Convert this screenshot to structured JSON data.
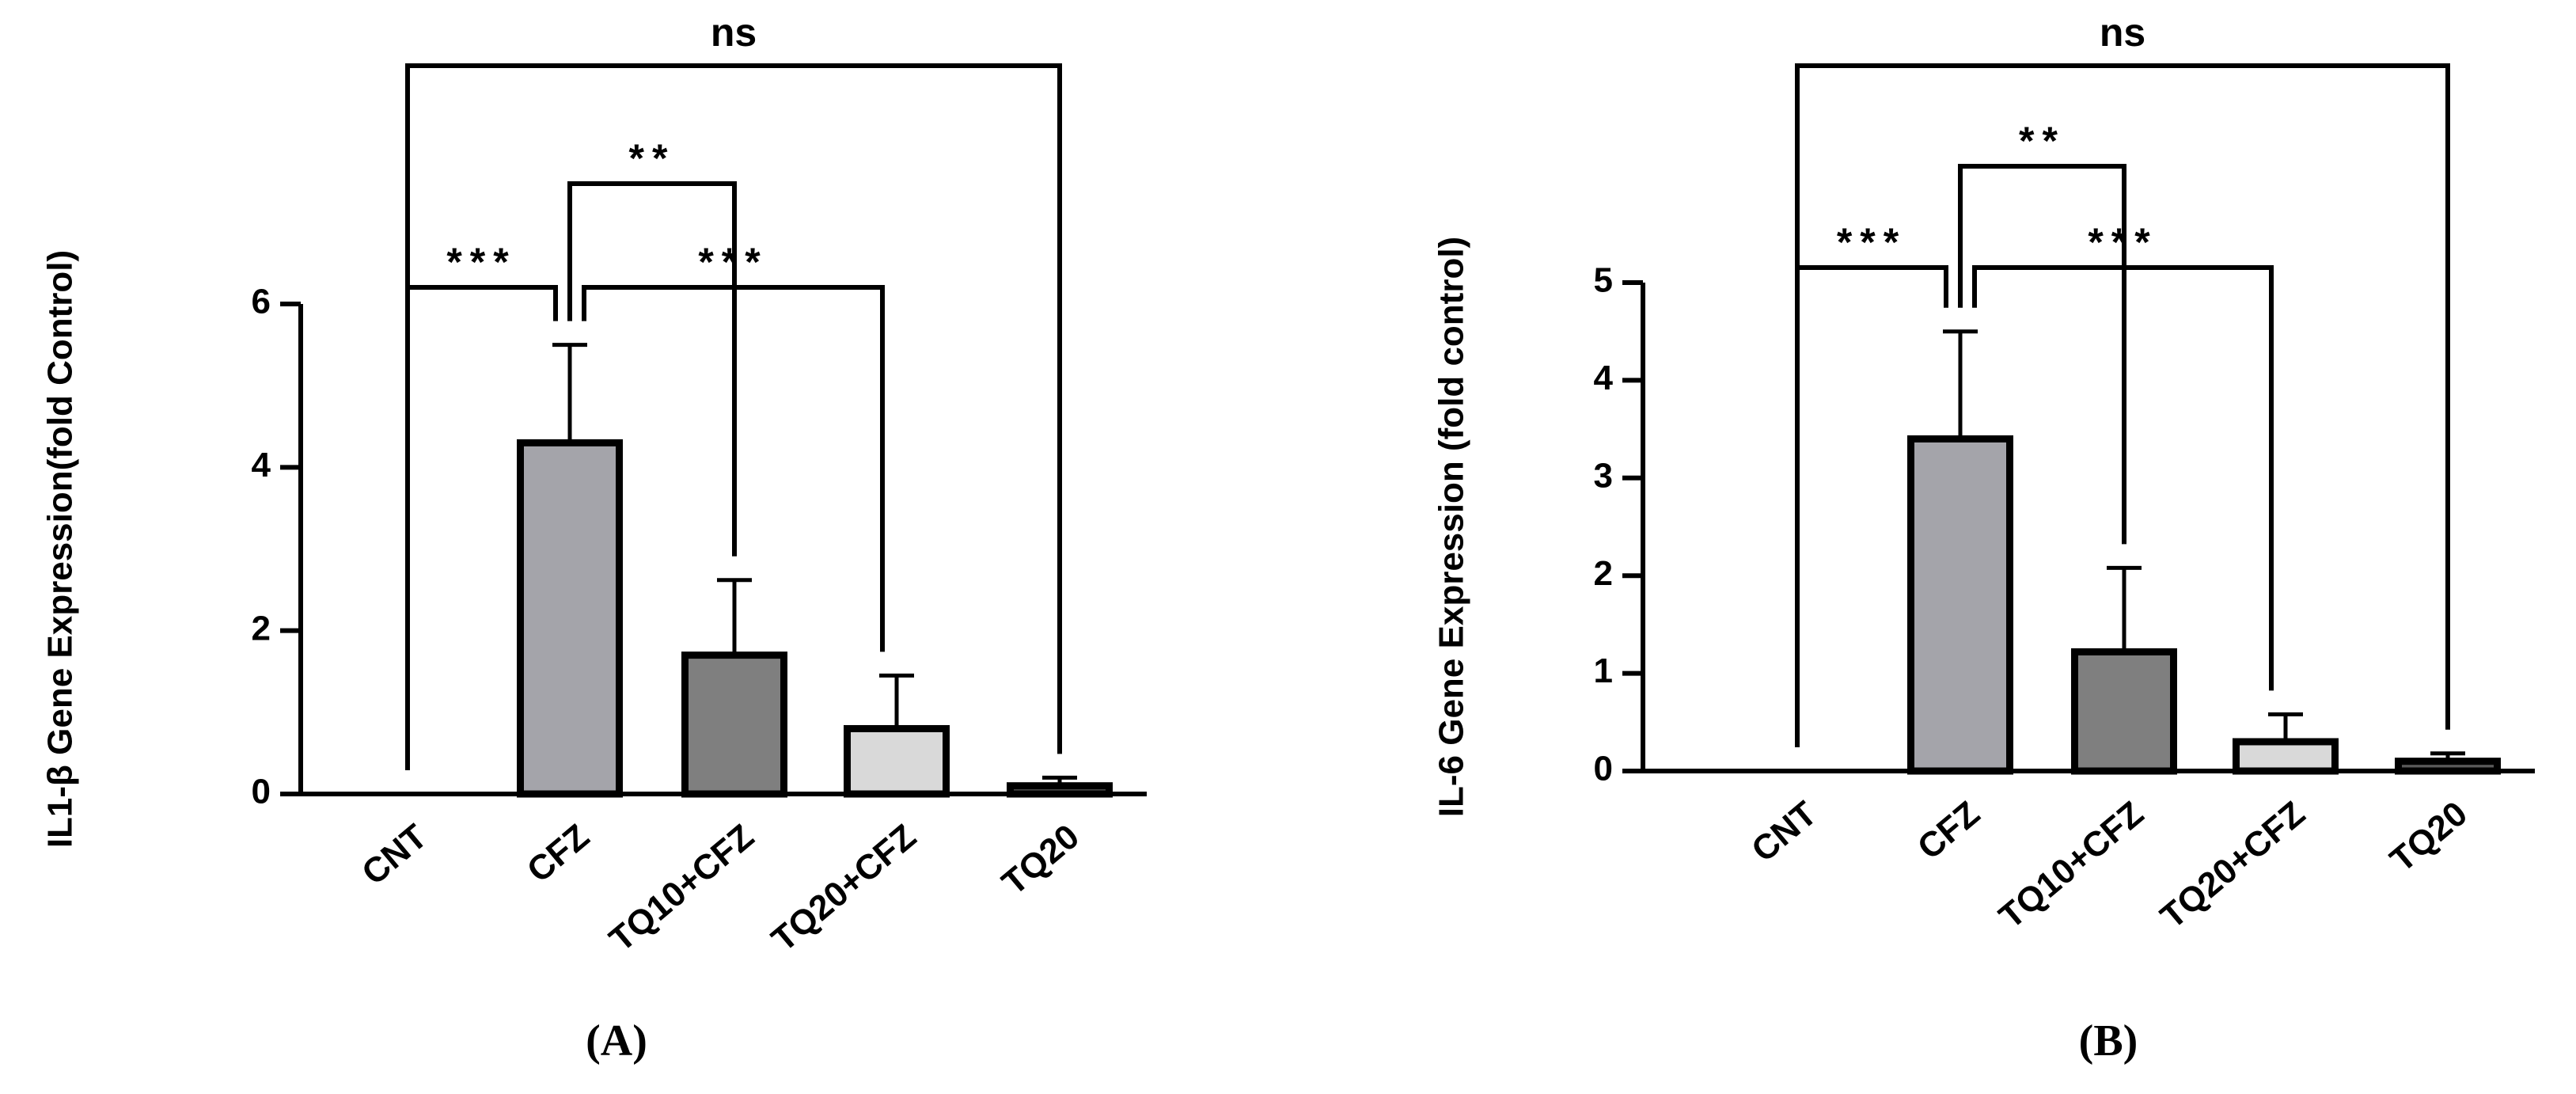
{
  "chart_data": [
    {
      "type": "bar",
      "panel_label": "(A)",
      "ylabel": "IL1-β Gene Expression(fold Control)",
      "categories": [
        "CNT",
        "CFZ",
        "TQ10+CFZ",
        "TQ20+CFZ",
        "TQ20"
      ],
      "values": [
        0,
        4.3,
        1.7,
        0.8,
        0.1
      ],
      "errors": [
        0,
        1.2,
        0.92,
        0.65,
        0.1
      ],
      "colors": [
        "#ffffff",
        "#a4a4aa",
        "#7f7f7f",
        "#d9d9d9",
        "#595959"
      ],
      "ylim": [
        0,
        6
      ],
      "yticks": [
        0,
        2,
        4,
        6
      ],
      "annotations": [
        {
          "from": "CNT",
          "to": "TQ20",
          "label": "ns"
        },
        {
          "from": "CFZ",
          "to": "TQ10+CFZ",
          "label": "**"
        },
        {
          "from": "CNT",
          "to": "CFZ",
          "label": "***"
        },
        {
          "from": "CFZ",
          "to": "TQ20+CFZ",
          "label": "***"
        }
      ]
    },
    {
      "type": "bar",
      "panel_label": "(B)",
      "ylabel": "IL-6 Gene Expression (fold control)",
      "categories": [
        "CNT",
        "CFZ",
        "TQ10+CFZ",
        "TQ20+CFZ",
        "TQ20"
      ],
      "values": [
        0,
        3.4,
        1.22,
        0.3,
        0.1
      ],
      "errors": [
        0,
        1.1,
        0.86,
        0.28,
        0.08
      ],
      "colors": [
        "#ffffff",
        "#a4a4aa",
        "#7f7f7f",
        "#d9d9d9",
        "#595959"
      ],
      "ylim": [
        0,
        5
      ],
      "yticks": [
        0,
        1,
        2,
        3,
        4,
        5
      ],
      "annotations": [
        {
          "from": "CNT",
          "to": "TQ20",
          "label": "ns"
        },
        {
          "from": "CFZ",
          "to": "TQ10+CFZ",
          "label": "**"
        },
        {
          "from": "CNT",
          "to": "CFZ",
          "label": "***"
        },
        {
          "from": "CFZ",
          "to": "TQ20+CFZ",
          "label": "***"
        }
      ]
    }
  ]
}
